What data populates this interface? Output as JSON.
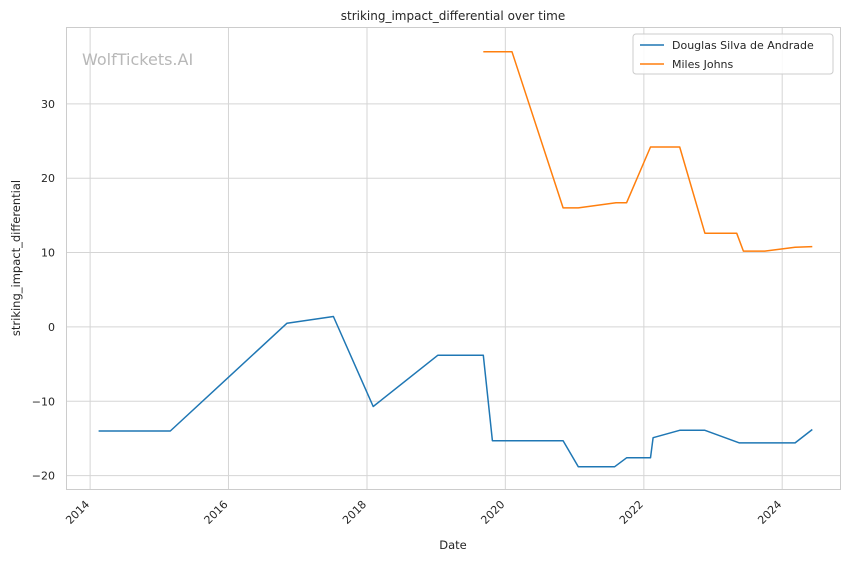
{
  "chart_data": {
    "type": "line",
    "title": "striking_impact_differential over time",
    "xlabel": "Date",
    "ylabel": "striking_impact_differential",
    "watermark": "WolfTickets.AI",
    "x_ticks": [
      "2014",
      "2016",
      "2018",
      "2020",
      "2022",
      "2024"
    ],
    "y_ticks": [
      -20,
      -10,
      0,
      10,
      20,
      30
    ],
    "xlim": [
      "2013-09-01",
      "2024-11-01"
    ],
    "ylim": [
      -21.8,
      40.2
    ],
    "grid": true,
    "legend_position": "top-right",
    "series": [
      {
        "name": "Douglas Silva de Andrade",
        "color": "#1f77b4",
        "points": [
          {
            "x": "2014-02-15",
            "y": -14.0
          },
          {
            "x": "2015-02-28",
            "y": -14.0
          },
          {
            "x": "2016-11-05",
            "y": 0.5
          },
          {
            "x": "2017-07-08",
            "y": 1.4
          },
          {
            "x": "2018-02-03",
            "y": -10.7
          },
          {
            "x": "2019-01-10",
            "y": -3.8
          },
          {
            "x": "2019-09-07",
            "y": -3.8
          },
          {
            "x": "2019-10-25",
            "y": -15.3
          },
          {
            "x": "2020-11-01",
            "y": -15.3
          },
          {
            "x": "2021-01-20",
            "y": -18.8
          },
          {
            "x": "2021-07-31",
            "y": -18.8
          },
          {
            "x": "2021-10-02",
            "y": -17.6
          },
          {
            "x": "2022-02-05",
            "y": -17.6
          },
          {
            "x": "2022-02-19",
            "y": -14.9
          },
          {
            "x": "2022-07-09",
            "y": -13.9
          },
          {
            "x": "2022-11-19",
            "y": -13.9
          },
          {
            "x": "2023-05-20",
            "y": -15.6
          },
          {
            "x": "2024-03-09",
            "y": -15.6
          },
          {
            "x": "2024-06-08",
            "y": -13.8
          }
        ]
      },
      {
        "name": "Miles Johns",
        "color": "#ff7f0e",
        "points": [
          {
            "x": "2019-09-07",
            "y": 37.0
          },
          {
            "x": "2020-02-05",
            "y": 37.0
          },
          {
            "x": "2020-11-01",
            "y": 16.0
          },
          {
            "x": "2021-01-20",
            "y": 16.0
          },
          {
            "x": "2021-08-07",
            "y": 16.7
          },
          {
            "x": "2021-10-02",
            "y": 16.7
          },
          {
            "x": "2022-02-05",
            "y": 24.2
          },
          {
            "x": "2022-07-09",
            "y": 24.2
          },
          {
            "x": "2022-11-19",
            "y": 12.6
          },
          {
            "x": "2023-05-06",
            "y": 12.6
          },
          {
            "x": "2023-06-10",
            "y": 10.2
          },
          {
            "x": "2023-10-01",
            "y": 10.2
          },
          {
            "x": "2024-03-09",
            "y": 10.7
          },
          {
            "x": "2024-06-08",
            "y": 10.8
          }
        ]
      }
    ]
  }
}
